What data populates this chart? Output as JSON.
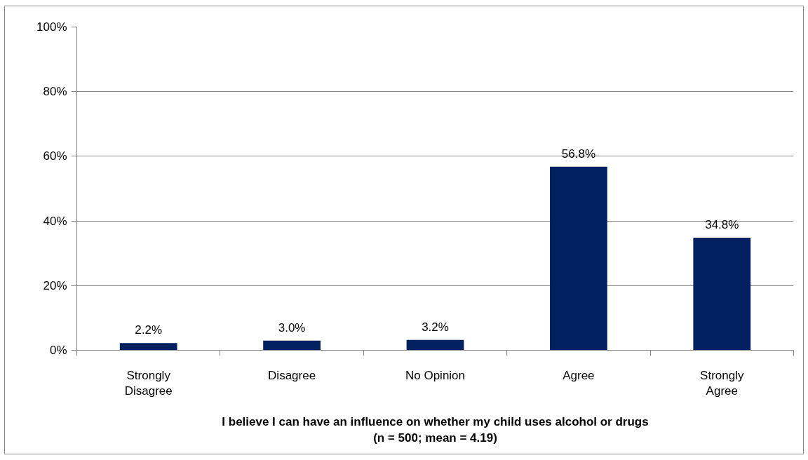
{
  "chart_data": {
    "type": "bar",
    "xlabel": "I believe I can have an influence on whether my child uses alcohol or drugs\n(n = 500; mean = 4.19)",
    "categories": [
      "Strongly Disagree",
      "Disagree",
      "No Opinion",
      "Agree",
      "Strongly Agree"
    ],
    "values": [
      2.2,
      3.0,
      3.2,
      56.8,
      34.8
    ],
    "value_labels": [
      "2.2%",
      "3.0%",
      "3.2%",
      "56.8%",
      "34.8%"
    ],
    "color": "#002060",
    "ylim": [
      0,
      100
    ],
    "yticks": [
      {
        "value": 0,
        "label": "0%"
      },
      {
        "value": 20,
        "label": "20%"
      },
      {
        "value": 40,
        "label": "40%"
      },
      {
        "value": 60,
        "label": "60%"
      },
      {
        "value": 80,
        "label": "80%"
      },
      {
        "value": 100,
        "label": "100%"
      }
    ],
    "grid": "y"
  }
}
